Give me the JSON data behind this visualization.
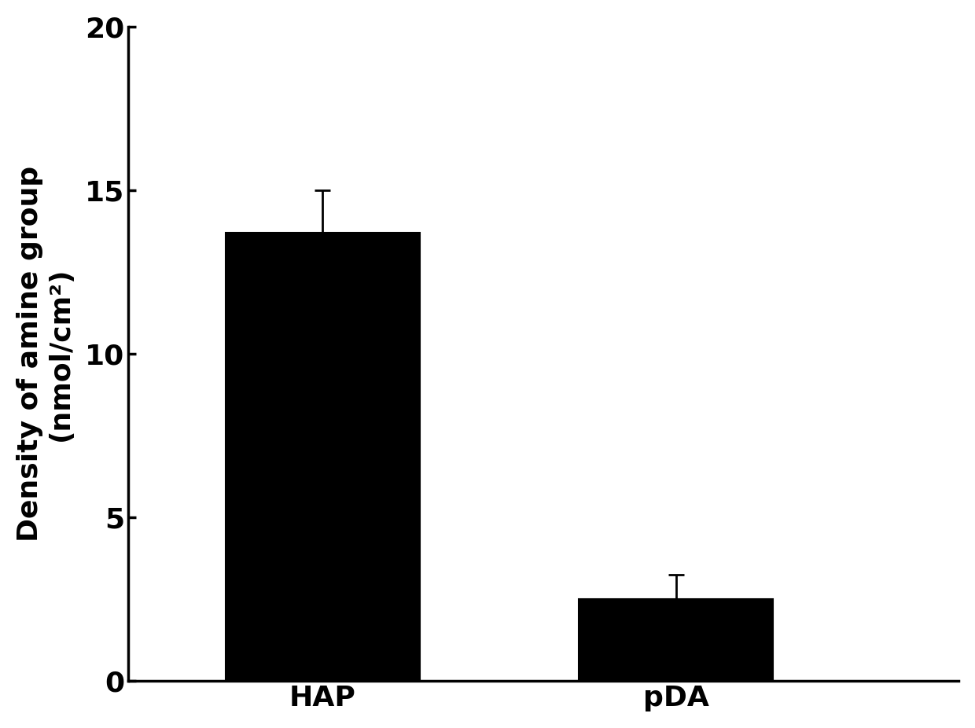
{
  "categories": [
    "HAP",
    "pDA"
  ],
  "values": [
    13.7,
    2.5
  ],
  "errors": [
    1.3,
    0.75
  ],
  "bar_color": "#000000",
  "bar_width": 0.55,
  "ylabel_line1": "Density of amine group",
  "ylabel_line2": "(nmol/cm²)",
  "ylim": [
    0,
    20
  ],
  "yticks": [
    0,
    5,
    10,
    15,
    20
  ],
  "background_color": "#ffffff",
  "tick_fontsize": 26,
  "label_fontsize": 26,
  "bar_edge_color": "#000000",
  "error_capsize": 7,
  "error_linewidth": 2,
  "error_color": "#000000",
  "spine_linewidth": 2.5,
  "x_positions": [
    1,
    2
  ],
  "xlim": [
    0.45,
    2.8
  ]
}
